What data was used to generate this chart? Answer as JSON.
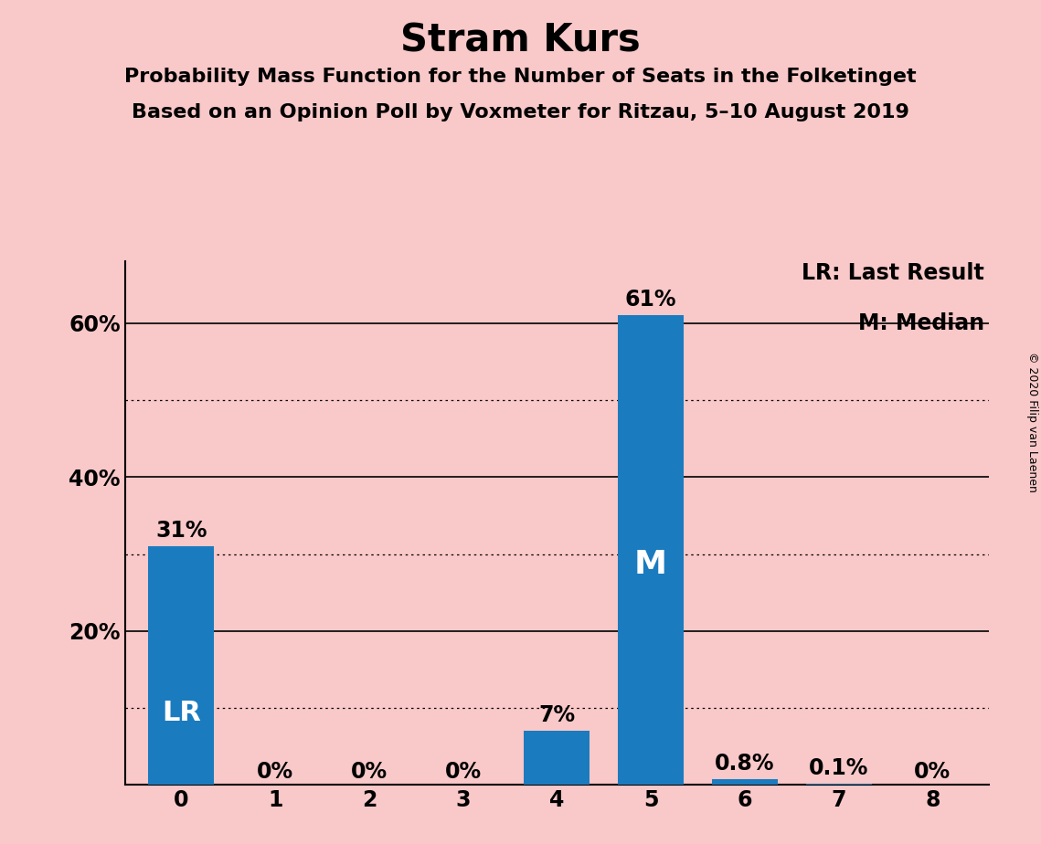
{
  "title": "Stram Kurs",
  "subtitle1": "Probability Mass Function for the Number of Seats in the Folketinget",
  "subtitle2": "Based on an Opinion Poll by Voxmeter for Ritzau, 5–10 August 2019",
  "categories": [
    0,
    1,
    2,
    3,
    4,
    5,
    6,
    7,
    8
  ],
  "values": [
    31,
    0,
    0,
    0,
    7,
    61,
    0.8,
    0.1,
    0
  ],
  "bar_color": "#1b7bbf",
  "background_color": "#f9c8c8",
  "bar_labels": [
    "31%",
    "0%",
    "0%",
    "0%",
    "7%",
    "61%",
    "0.8%",
    "0.1%",
    "0%"
  ],
  "lr_bar_index": 0,
  "median_bar_index": 5,
  "lr_label": "LR",
  "median_label": "M",
  "legend_lr": "LR: Last Result",
  "legend_m": "M: Median",
  "ytick_positions": [
    20,
    40,
    60
  ],
  "ytick_labels": [
    "20%",
    "40%",
    "60%"
  ],
  "ylim": [
    0,
    68
  ],
  "solid_gridlines": [
    20,
    40,
    60
  ],
  "dotted_gridlines": [
    10,
    30,
    50
  ],
  "copyright_text": "© 2020 Filip van Laenen",
  "title_fontsize": 30,
  "subtitle_fontsize": 16,
  "bar_label_fontsize": 17,
  "inner_label_fontsize_lr": 22,
  "inner_label_fontsize_m": 26,
  "legend_fontsize": 17,
  "tick_fontsize": 17,
  "copyright_fontsize": 9
}
